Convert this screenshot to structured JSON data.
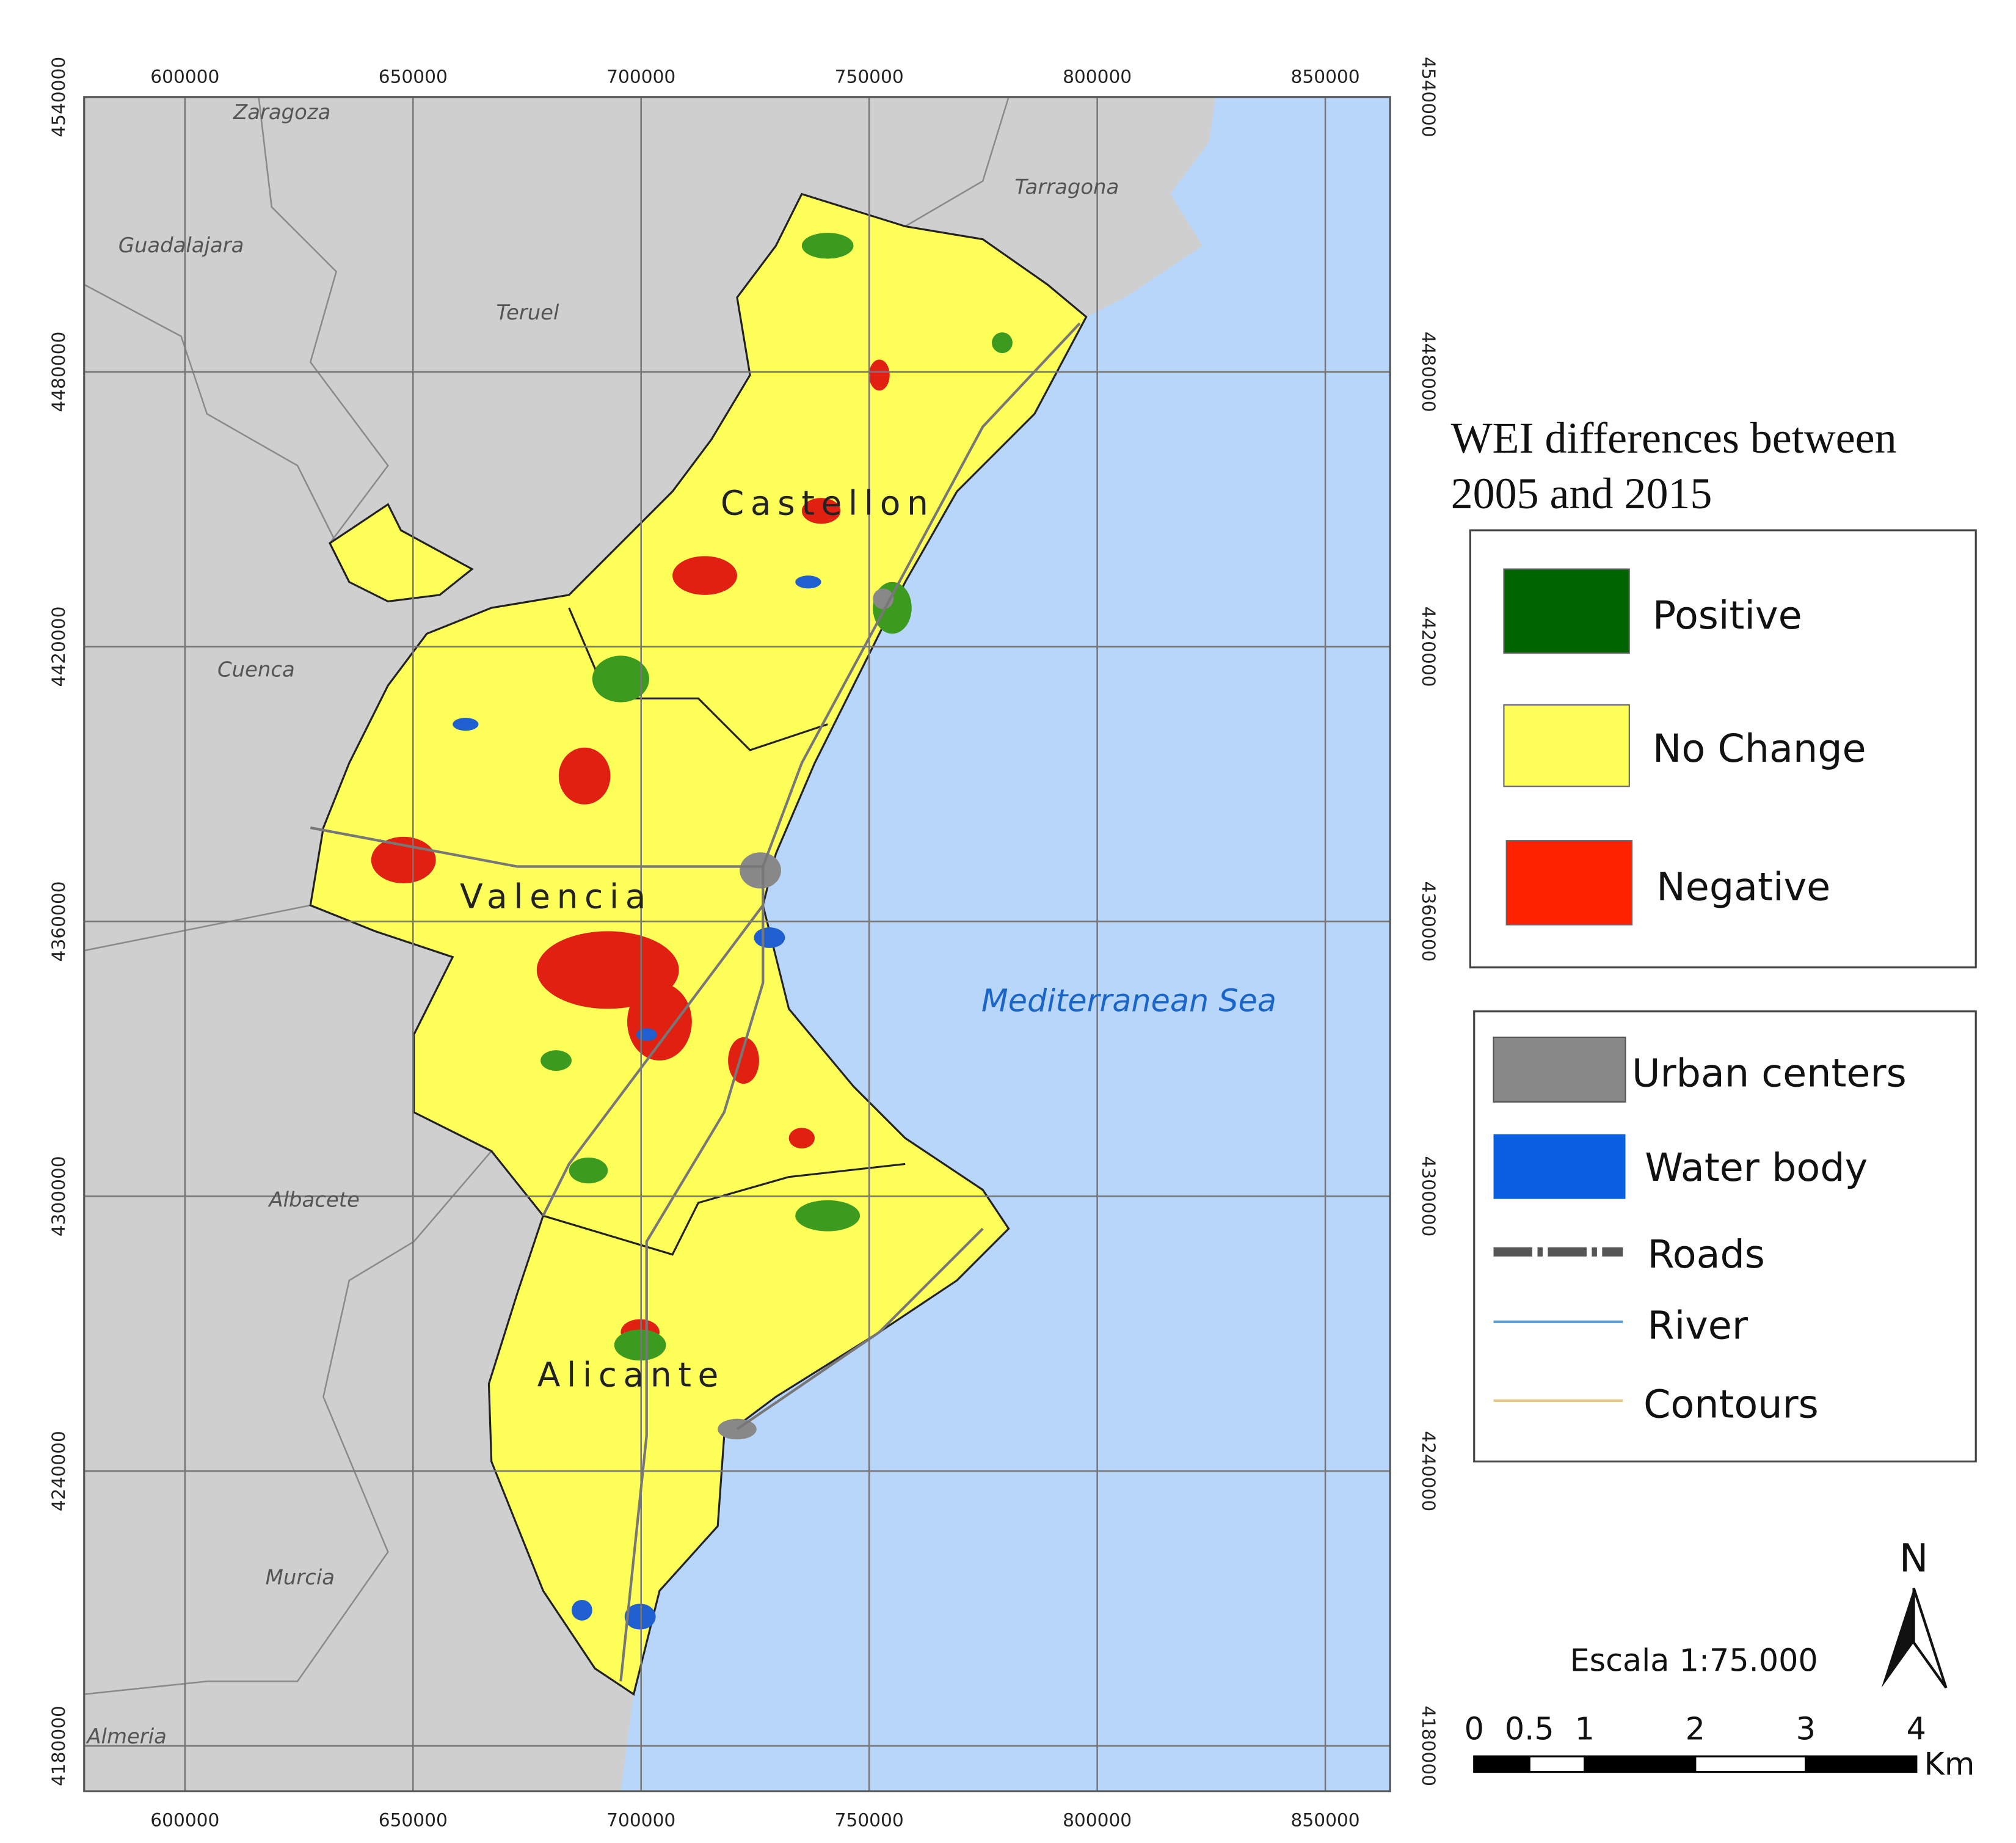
{
  "map": {
    "xlim": [
      577900,
      864200
    ],
    "ylim": [
      4170100,
      4540000
    ],
    "xticks": [
      600000,
      650000,
      700000,
      750000,
      800000,
      850000
    ],
    "yticks": [
      4180000,
      4240000,
      4300000,
      4360000,
      4420000,
      4480000,
      4540000
    ],
    "places": [
      "Zaragoza",
      "Tarragona",
      "Guadalajara",
      "Teruel",
      "Castellon",
      "Cuenca",
      "Valencia",
      "Albacete",
      "Alicante",
      "Murcia",
      "Almeria",
      "Mediterranean Sea"
    ]
  },
  "legend": {
    "title_lines": [
      "WEI differences between",
      "2005 and 2015"
    ],
    "classes": [
      "Positive",
      "No Change",
      "Negative"
    ],
    "features": [
      "Urban centers",
      "Water body",
      "Roads",
      "River",
      "Contours"
    ]
  },
  "scale_bar": {
    "text": "Escala 1:75.000",
    "ticks": [
      0,
      0.5,
      1,
      2,
      3,
      4
    ],
    "unit": "Km"
  },
  "north": "N"
}
